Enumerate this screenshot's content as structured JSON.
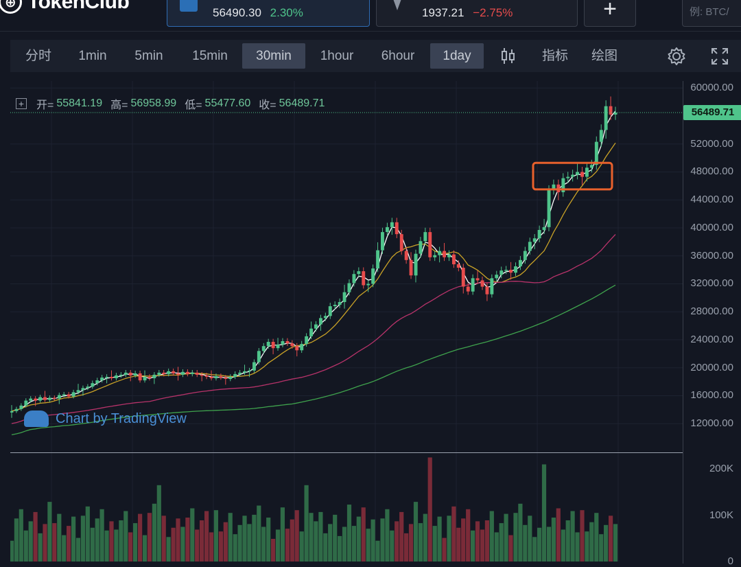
{
  "header": {
    "logo_text": "TokenClub",
    "tickers": [
      {
        "price": "56490.30",
        "change": "2.30%",
        "direction": "up",
        "icon": "btc-icon"
      },
      {
        "price": "1937.21",
        "change": "−2.75%",
        "direction": "down",
        "icon": "eth-icon"
      }
    ],
    "add_icon": "plus-icon",
    "search_placeholder": "例: BTC/"
  },
  "toolbar": {
    "intervals": [
      "分时",
      "1min",
      "5min",
      "15min",
      "30min",
      "1hour",
      "6hour",
      "1day"
    ],
    "selected": [
      "30min",
      "1day"
    ],
    "indicators_label": "指标",
    "draw_label": "绘图",
    "icons": [
      "candlestick-icon",
      "settings-icon",
      "fullscreen-icon"
    ]
  },
  "legend": {
    "open_label": "开=",
    "open": "55841.19",
    "high_label": "高=",
    "high": "56958.99",
    "low_label": "低=",
    "low": "55477.60",
    "close_label": "收=",
    "close": "56489.71"
  },
  "watermark": "Chart by TradingView",
  "colors": {
    "up": "#4fc48b",
    "down": "#e74c4c",
    "ma_white": "#ffffff",
    "ma_yellow": "#c9a227",
    "ma_pink": "#b8336a",
    "ma_green": "#3fa34d",
    "highlight": "#e8612c"
  },
  "chart_data": {
    "type": "candlestick",
    "y_axis": {
      "ticks": [
        "60000.00",
        "52000.00",
        "48000.00",
        "44000.00",
        "40000.00",
        "36000.00",
        "32000.00",
        "28000.00",
        "24000.00",
        "20000.00",
        "16000.00",
        "12000.00"
      ],
      "range": [
        8000,
        60000
      ]
    },
    "current_price_label": "56489.71",
    "volume_axis": {
      "ticks": [
        "200K",
        "100K",
        "0"
      ],
      "max": 230000
    },
    "closes": [
      13800,
      14100,
      14600,
      15300,
      15600,
      15300,
      15800,
      15400,
      15700,
      15600,
      16100,
      16200,
      15900,
      16500,
      16800,
      17100,
      17300,
      17800,
      18200,
      18600,
      18700,
      18500,
      18900,
      19000,
      19300,
      18900,
      19200,
      18200,
      18700,
      18500,
      19000,
      19300,
      19100,
      19500,
      19200,
      19000,
      19400,
      19100,
      19300,
      19000,
      18900,
      18700,
      18500,
      18800,
      18600,
      18400,
      18700,
      19100,
      19300,
      19500,
      19600,
      20800,
      22400,
      23100,
      23700,
      22800,
      23300,
      23800,
      23500,
      23100,
      22500,
      23400,
      24500,
      25600,
      26200,
      27100,
      27400,
      28800,
      29000,
      29400,
      30800,
      32100,
      33400,
      33800,
      31800,
      32000,
      34200,
      36800,
      39400,
      40100,
      40800,
      39100,
      36700,
      35400,
      33200,
      36300,
      38100,
      39400,
      35800,
      36100,
      36700,
      35800,
      36200,
      34800,
      34300,
      31600,
      30900,
      32800,
      32500,
      31600,
      30500,
      32800,
      33300,
      33900,
      34000,
      33600,
      34500,
      35400,
      36700,
      38000,
      38500,
      39700,
      40100,
      45400,
      46200,
      45100,
      47100,
      47300,
      47600,
      48000,
      47300,
      48600,
      49000,
      52300,
      54000,
      57400,
      56200,
      56489
    ]
  }
}
